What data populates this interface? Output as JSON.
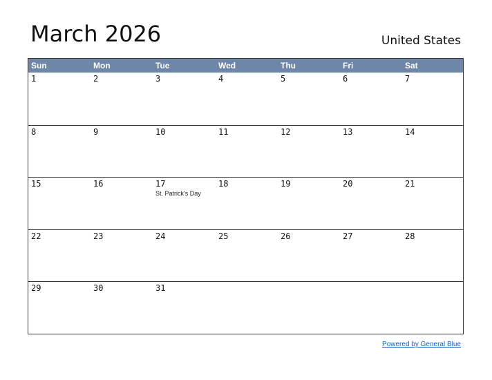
{
  "title": "March 2026",
  "country": "United States",
  "colors": {
    "header_bg": "#6e86a7",
    "link": "#1f5fbf"
  },
  "weekdays": [
    "Sun",
    "Mon",
    "Tue",
    "Wed",
    "Thu",
    "Fri",
    "Sat"
  ],
  "weeks": [
    [
      "1",
      "2",
      "3",
      "4",
      "5",
      "6",
      "7"
    ],
    [
      "8",
      "9",
      "10",
      "11",
      "12",
      "13",
      "14"
    ],
    [
      "15",
      "16",
      "17",
      "18",
      "19",
      "20",
      "21"
    ],
    [
      "22",
      "23",
      "24",
      "25",
      "26",
      "27",
      "28"
    ],
    [
      "29",
      "30",
      "31",
      "",
      "",
      "",
      ""
    ]
  ],
  "holidays": {
    "17": "St. Patrick's Day"
  },
  "footer_link": "Powered by General Blue"
}
